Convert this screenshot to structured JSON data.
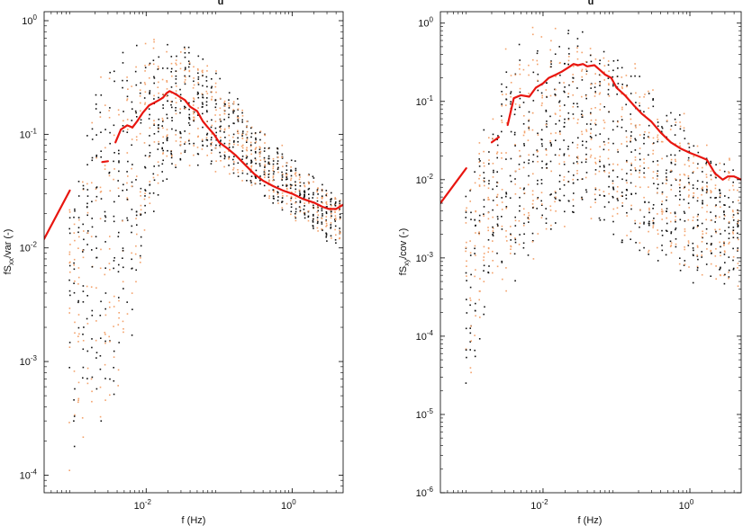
{
  "chart_data": [
    {
      "type": "scatter",
      "title": "u",
      "xlabel": "f (Hz)",
      "ylabel": {
        "base": "fS",
        "sub": "xx",
        "rest": "/var (-)"
      },
      "xscale": "log",
      "yscale": "log",
      "xlim": [
        0.0004,
        5
      ],
      "ylim": [
        7e-05,
        1.2
      ],
      "xticks": [
        {
          "value": 0.01,
          "base": "10",
          "exp": "-2"
        },
        {
          "value": 1,
          "base": "10",
          "exp": "0"
        }
      ],
      "yticks": [
        {
          "value": 0.0001,
          "base": "10",
          "exp": "-4"
        },
        {
          "value": 0.001,
          "base": "10",
          "exp": "-3"
        },
        {
          "value": 0.01,
          "base": "10",
          "exp": "-2"
        },
        {
          "value": 0.1,
          "base": "10",
          "exp": "-1"
        },
        {
          "value": 1,
          "base": "10",
          "exp": "0"
        }
      ],
      "grid": false,
      "colors": {
        "dots_dark": "#111111",
        "dots_orange": "#f3a26b",
        "mean_line": "#e8150f"
      },
      "scatter_envelope": {
        "f": [
          0.0009,
          0.0014,
          0.002,
          0.003,
          0.005,
          0.008,
          0.012,
          0.02,
          0.03,
          0.05,
          0.08,
          0.12,
          0.2,
          0.3,
          0.5,
          0.8,
          1.2,
          2,
          3,
          4.5
        ],
        "low": [
          0.0001,
          0.0001,
          0.0002,
          0.0002,
          0.0006,
          0.004,
          0.015,
          0.03,
          0.05,
          0.05,
          0.045,
          0.04,
          0.035,
          0.03,
          0.025,
          0.02,
          0.016,
          0.013,
          0.011,
          0.01
        ],
        "high": [
          0.04,
          0.08,
          0.9,
          0.8,
          0.8,
          0.8,
          0.8,
          0.8,
          0.75,
          0.6,
          0.45,
          0.3,
          0.2,
          0.15,
          0.1,
          0.08,
          0.06,
          0.045,
          0.035,
          0.03
        ]
      },
      "series": [
        {
          "kind": "mean-line",
          "segments": [
            {
              "x": [
                0.0004,
                0.0009
              ],
              "y": [
                0.012,
                0.032
              ]
            },
            {
              "x": [
                0.0025,
                0.003
              ],
              "y": [
                0.057,
                0.058
              ]
            },
            {
              "x": [
                0.0038,
                0.0045,
                0.0055,
                0.0065,
                0.0075,
                0.009,
                0.011,
                0.013,
                0.015,
                0.017,
                0.019,
                0.021,
                0.024,
                0.027,
                0.03,
                0.034,
                0.04,
                0.05,
                0.06,
                0.07,
                0.085,
                0.1,
                0.13,
                0.17,
                0.22,
                0.3,
                0.4,
                0.55,
                0.75,
                1,
                1.4,
                2,
                2.6,
                3.2,
                4,
                5
              ],
              "y": [
                0.085,
                0.11,
                0.12,
                0.115,
                0.13,
                0.155,
                0.18,
                0.19,
                0.2,
                0.21,
                0.23,
                0.24,
                0.23,
                0.22,
                0.21,
                0.2,
                0.175,
                0.16,
                0.13,
                0.115,
                0.1,
                0.085,
                0.075,
                0.065,
                0.055,
                0.045,
                0.039,
                0.035,
                0.032,
                0.03,
                0.027,
                0.025,
                0.023,
                0.022,
                0.022,
                0.024
              ]
            }
          ]
        }
      ]
    },
    {
      "type": "scatter",
      "title": "u",
      "xlabel": "f (Hz)",
      "ylabel": {
        "base": "fS",
        "sub": "xy",
        "rest": "/cov (-)"
      },
      "xscale": "log",
      "yscale": "log",
      "xlim": [
        0.0004,
        5
      ],
      "ylim": [
        1e-06,
        1.4
      ],
      "xticks": [
        {
          "value": 0.01,
          "base": "10",
          "exp": "-2"
        },
        {
          "value": 1,
          "base": "10",
          "exp": "0"
        }
      ],
      "yticks": [
        {
          "value": 1e-06,
          "base": "10",
          "exp": "-6"
        },
        {
          "value": 1e-05,
          "base": "10",
          "exp": "-5"
        },
        {
          "value": 0.0001,
          "base": "10",
          "exp": "-4"
        },
        {
          "value": 0.001,
          "base": "10",
          "exp": "-3"
        },
        {
          "value": 0.01,
          "base": "10",
          "exp": "-2"
        },
        {
          "value": 0.1,
          "base": "10",
          "exp": "-1"
        },
        {
          "value": 1,
          "base": "10",
          "exp": "0"
        }
      ],
      "grid": false,
      "colors": {
        "dots_dark": "#111111",
        "dots_orange": "#f3a26b",
        "mean_line": "#e8150f"
      },
      "scatter_envelope": {
        "f": [
          0.0009,
          0.0014,
          0.002,
          0.003,
          0.005,
          0.008,
          0.012,
          0.02,
          0.03,
          0.05,
          0.08,
          0.12,
          0.2,
          0.3,
          0.5,
          0.8,
          1.2,
          2,
          3,
          4.5
        ],
        "low": [
          1e-05,
          4e-05,
          0.0003,
          0.0003,
          0.0005,
          0.0008,
          0.0012,
          0.002,
          0.002,
          0.002,
          0.0015,
          0.0012,
          0.001,
          0.0008,
          0.0006,
          0.0005,
          0.0004,
          0.0004,
          0.0003,
          0.0003
        ],
        "high": [
          0.02,
          0.05,
          0.08,
          0.8,
          0.9,
          1.0,
          1.1,
          1.2,
          1.1,
          1.0,
          0.8,
          0.5,
          0.3,
          0.2,
          0.12,
          0.08,
          0.05,
          0.04,
          0.03,
          0.03
        ]
      },
      "series": [
        {
          "kind": "mean-line",
          "segments": [
            {
              "x": [
                0.0004,
                0.0009
              ],
              "y": [
                0.005,
                0.014
              ]
            },
            {
              "x": [
                0.002,
                0.0025
              ],
              "y": [
                0.03,
                0.035
              ]
            },
            {
              "x": [
                0.0033,
                0.004,
                0.005,
                0.0065,
                0.008,
                0.01,
                0.012,
                0.015,
                0.018,
                0.022,
                0.026,
                0.03,
                0.035,
                0.04,
                0.05,
                0.06,
                0.07,
                0.085,
                0.1,
                0.13,
                0.17,
                0.22,
                0.3,
                0.4,
                0.55,
                0.75,
                1,
                1.3,
                1.7,
                2.2,
                2.8,
                3.3,
                4,
                5
              ],
              "y": [
                0.05,
                0.11,
                0.12,
                0.115,
                0.15,
                0.17,
                0.2,
                0.22,
                0.24,
                0.27,
                0.3,
                0.29,
                0.3,
                0.28,
                0.29,
                0.25,
                0.22,
                0.2,
                0.15,
                0.12,
                0.09,
                0.07,
                0.055,
                0.04,
                0.03,
                0.025,
                0.022,
                0.02,
                0.018,
                0.012,
                0.01,
                0.011,
                0.011,
                0.01
              ]
            }
          ]
        }
      ]
    }
  ]
}
